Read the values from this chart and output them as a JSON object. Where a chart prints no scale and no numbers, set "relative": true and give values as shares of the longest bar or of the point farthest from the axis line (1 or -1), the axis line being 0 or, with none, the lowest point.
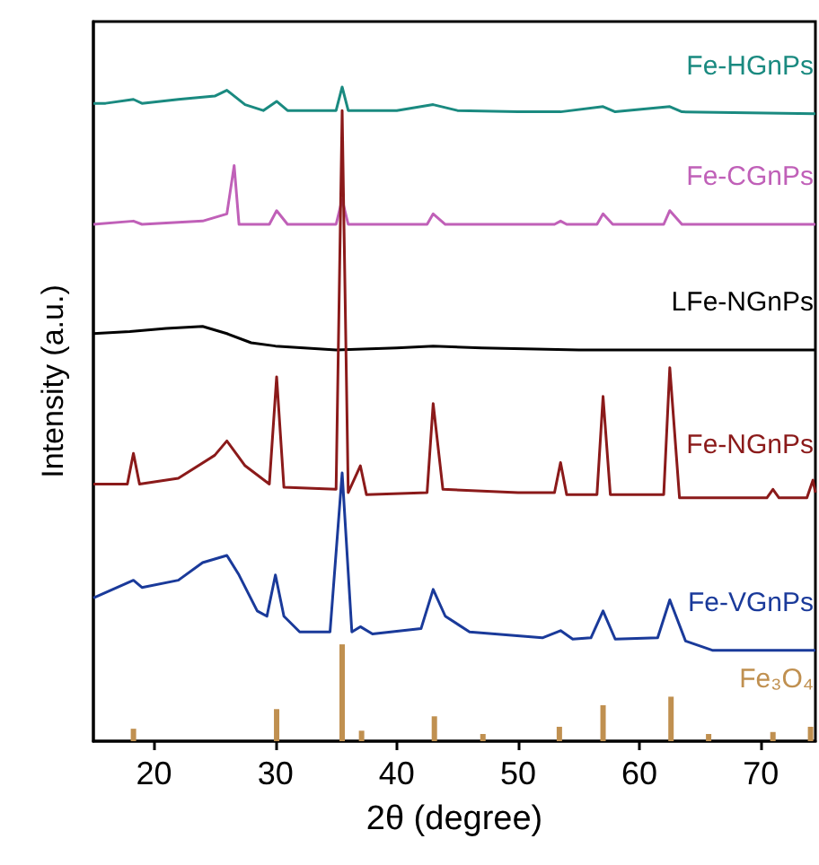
{
  "chart_data": {
    "type": "line",
    "relative": true,
    "xlabel": "2θ (degree)",
    "ylabel": "Intensity (a.u.)",
    "xlim": [
      15,
      74.5
    ],
    "xticks": [
      20,
      30,
      40,
      50,
      60,
      70
    ],
    "legend": false,
    "series": [
      {
        "name": "Fe-HGnPs",
        "color": "#1a8a80",
        "x": [
          15,
          16,
          18.3,
          19,
          22,
          25,
          26,
          27.5,
          29,
          30.1,
          31,
          35,
          35.5,
          36,
          40,
          43,
          45,
          50,
          53.5,
          57,
          58,
          62.5,
          63.5,
          74.5
        ],
        "values": [
          0.975,
          0.975,
          0.981,
          0.975,
          0.981,
          0.986,
          0.995,
          0.973,
          0.964,
          0.978,
          0.964,
          0.964,
          1.0,
          0.964,
          0.964,
          0.973,
          0.964,
          0.962,
          0.962,
          0.97,
          0.962,
          0.97,
          0.962,
          0.959
        ]
      },
      {
        "name": "Fe-CGnPs",
        "color": "#c060b8",
        "x": [
          15,
          18.3,
          19,
          24,
          26,
          26.6,
          27,
          29.5,
          30.1,
          31,
          35,
          35.5,
          36,
          42.5,
          43,
          44,
          53,
          53.5,
          54,
          56.5,
          57,
          57.8,
          62,
          62.5,
          63.5,
          74.5
        ],
        "values": [
          0.79,
          0.795,
          0.79,
          0.795,
          0.806,
          0.88,
          0.79,
          0.79,
          0.811,
          0.79,
          0.79,
          0.828,
          0.79,
          0.79,
          0.806,
          0.79,
          0.79,
          0.795,
          0.79,
          0.79,
          0.806,
          0.79,
          0.79,
          0.811,
          0.79,
          0.79
        ]
      },
      {
        "name": "LFe-NGnPs",
        "color": "#000000",
        "x": [
          15,
          18,
          21,
          24,
          26,
          28,
          30,
          35,
          40,
          43,
          47,
          55,
          74.5
        ],
        "values": [
          0.623,
          0.626,
          0.631,
          0.634,
          0.623,
          0.609,
          0.604,
          0.598,
          0.601,
          0.604,
          0.601,
          0.598,
          0.598
        ]
      },
      {
        "name": "Fe-NGnPs",
        "color": "#8b1a1a",
        "x": [
          15,
          17.8,
          18.3,
          18.8,
          22,
          25,
          26,
          27.5,
          29.5,
          30.1,
          30.7,
          35,
          35.5,
          36,
          37,
          37.5,
          42.5,
          43,
          43.8,
          50,
          53,
          53.5,
          54,
          56.5,
          57,
          57.6,
          62,
          62.5,
          63.3,
          70.5,
          71,
          71.5,
          73.8,
          74.3,
          74.5
        ],
        "values": [
          0.393,
          0.393,
          0.44,
          0.393,
          0.402,
          0.437,
          0.459,
          0.421,
          0.393,
          0.557,
          0.388,
          0.385,
          0.964,
          0.38,
          0.421,
          0.377,
          0.38,
          0.516,
          0.385,
          0.38,
          0.38,
          0.426,
          0.377,
          0.377,
          0.527,
          0.377,
          0.377,
          0.571,
          0.372,
          0.372,
          0.385,
          0.372,
          0.372,
          0.399,
          0.38
        ]
      },
      {
        "name": "Fe-VGnPs",
        "color": "#1a3a9a",
        "x": [
          15,
          18.3,
          19,
          22,
          24,
          26,
          27,
          28.5,
          29.3,
          30,
          30.7,
          32,
          34.5,
          35.5,
          36.3,
          37,
          38,
          42,
          43,
          44,
          46,
          52,
          53.5,
          54.5,
          56,
          57,
          58,
          61.5,
          62.5,
          63.8,
          66,
          74.5
        ],
        "values": [
          0.219,
          0.246,
          0.235,
          0.246,
          0.273,
          0.284,
          0.254,
          0.199,
          0.191,
          0.254,
          0.191,
          0.167,
          0.167,
          0.41,
          0.167,
          0.175,
          0.164,
          0.172,
          0.232,
          0.191,
          0.167,
          0.158,
          0.169,
          0.156,
          0.158,
          0.199,
          0.156,
          0.158,
          0.216,
          0.153,
          0.139,
          0.139
        ]
      },
      {
        "name": "Fe₃O₄",
        "type": "bar",
        "color": "#c09050",
        "x": [
          18.3,
          30.1,
          35.5,
          37.1,
          43.1,
          47.1,
          53.4,
          57,
          62.6,
          65.7,
          71,
          74.1
        ],
        "values": [
          0.019,
          0.049,
          0.148,
          0.016,
          0.038,
          0.011,
          0.022,
          0.055,
          0.068,
          0.011,
          0.014,
          0.022
        ]
      }
    ]
  }
}
